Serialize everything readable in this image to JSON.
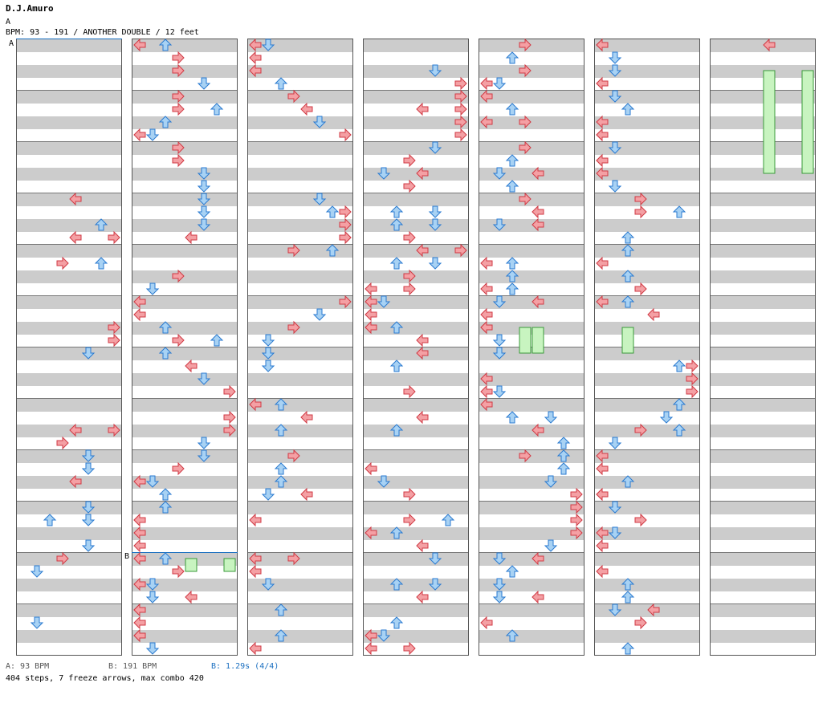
{
  "header": {
    "artist": "D.J.Amuro",
    "title": "A",
    "info": "BPM: 93 - 191 / ANOTHER DOUBLE / 12 feet"
  },
  "markers": {
    "a": "A",
    "b": "B"
  },
  "footer": {
    "bpm_a": "A: 93 BPM",
    "bpm_b": "B: 191 BPM",
    "stop_b": "B: 1.29s (4/4)",
    "summary": "404 steps, 7 freeze arrows, max combo 420"
  },
  "colors": {
    "left_arrow": "#f4a0a4",
    "right_arrow": "#f4a0a4",
    "up_arrow": "#a8d2f4",
    "down_arrow": "#a8d2f4",
    "freeze": "#c8f4c0",
    "stripe": "#cccccc",
    "bpm_line": "#1a6fc0"
  },
  "chart_data": {
    "type": "step-chart",
    "columns": 7,
    "measures_per_column": 12,
    "lanes": [
      "L",
      "D",
      "U",
      "R",
      "L",
      "D",
      "U",
      "R"
    ],
    "freeze_arrows": 7
  }
}
